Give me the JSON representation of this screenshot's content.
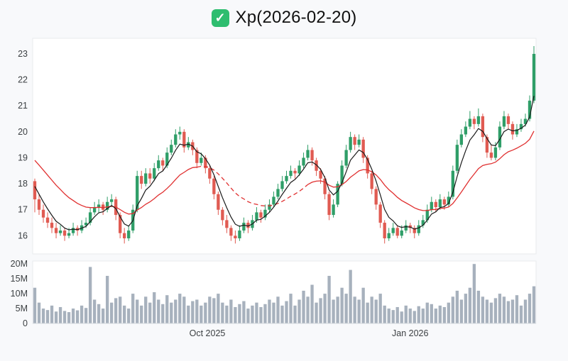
{
  "title": {
    "text": "Xp(2026-02-20)",
    "icon": "check-icon"
  },
  "colors": {
    "page_bg": "#f8f9fb",
    "panel_bg": "#ffffff",
    "panel_border": "#e9ebee",
    "up": "#2f9e68",
    "down": "#e05b52",
    "ma_fast": "#1a1a1a",
    "ma_slow": "#e03030",
    "volume_bar": "#a7b1bd",
    "axis_text": "#3c4043",
    "check_bg": "#2ebd6f"
  },
  "price_axis": {
    "ticks": [
      16,
      17,
      18,
      19,
      20,
      21,
      22,
      23
    ],
    "min": 15.3,
    "max": 23.6
  },
  "volume_axis": {
    "tick_values_m": [
      0,
      5,
      10,
      15,
      20
    ],
    "tick_labels": [
      "0",
      "5M",
      "10M",
      "15M",
      "20M"
    ],
    "max_m": 21
  },
  "x_axis": {
    "labels": [
      {
        "text": "Oct 2025",
        "pos": 0.347
      },
      {
        "text": "Jan 2026",
        "pos": 0.75
      }
    ]
  },
  "chart_data": {
    "type": "candlestick+volume",
    "title": "Xp(2026-02-20)",
    "ma_fast_window": 5,
    "ma_slow_window": 20,
    "ma_fast_seed": 17.9,
    "ma_slow_seed": 18.9,
    "red_dashed_range": [
      38,
      64
    ],
    "candles": [
      [
        18.1,
        18.2,
        16.9,
        17.4
      ],
      [
        17.4,
        17.6,
        16.8,
        17.0
      ],
      [
        17.0,
        17.2,
        16.5,
        16.7
      ],
      [
        16.7,
        16.9,
        16.3,
        16.5
      ],
      [
        16.5,
        16.7,
        16.1,
        16.3
      ],
      [
        16.3,
        16.5,
        15.9,
        16.1
      ],
      [
        16.1,
        16.4,
        16.0,
        16.2
      ],
      [
        16.2,
        16.3,
        15.8,
        16.0
      ],
      [
        16.0,
        16.3,
        15.9,
        16.1
      ],
      [
        16.1,
        16.5,
        16.0,
        16.3
      ],
      [
        16.3,
        16.4,
        16.0,
        16.2
      ],
      [
        16.2,
        16.6,
        16.1,
        16.4
      ],
      [
        16.4,
        16.7,
        16.3,
        16.5
      ],
      [
        16.5,
        17.1,
        16.4,
        16.9
      ],
      [
        16.9,
        17.3,
        16.8,
        17.1
      ],
      [
        17.1,
        17.4,
        16.9,
        17.2
      ],
      [
        17.2,
        17.3,
        16.8,
        17.0
      ],
      [
        17.0,
        17.5,
        16.9,
        17.3
      ],
      [
        17.3,
        17.6,
        17.1,
        17.4
      ],
      [
        17.4,
        17.5,
        16.6,
        16.8
      ],
      [
        16.8,
        16.9,
        15.9,
        16.1
      ],
      [
        16.1,
        16.3,
        15.7,
        15.9
      ],
      [
        15.9,
        16.4,
        15.8,
        16.2
      ],
      [
        16.2,
        17.2,
        16.1,
        17.0
      ],
      [
        17.0,
        18.5,
        16.9,
        18.3
      ],
      [
        18.3,
        18.5,
        17.8,
        18.0
      ],
      [
        18.0,
        18.6,
        17.9,
        18.4
      ],
      [
        18.4,
        18.6,
        18.0,
        18.2
      ],
      [
        18.2,
        18.8,
        18.1,
        18.6
      ],
      [
        18.6,
        19.1,
        18.5,
        18.9
      ],
      [
        18.9,
        19.0,
        18.5,
        18.7
      ],
      [
        18.7,
        19.4,
        18.6,
        19.2
      ],
      [
        19.2,
        19.7,
        19.1,
        19.5
      ],
      [
        19.5,
        20.1,
        19.4,
        19.9
      ],
      [
        19.9,
        20.2,
        19.7,
        20.0
      ],
      [
        20.0,
        20.1,
        19.2,
        19.4
      ],
      [
        19.4,
        19.8,
        19.3,
        19.6
      ],
      [
        19.6,
        19.7,
        19.1,
        19.3
      ],
      [
        19.3,
        19.4,
        18.6,
        18.8
      ],
      [
        18.8,
        19.2,
        18.7,
        19.0
      ],
      [
        19.0,
        19.1,
        18.4,
        18.6
      ],
      [
        18.6,
        18.7,
        18.0,
        18.2
      ],
      [
        18.2,
        18.3,
        17.4,
        17.6
      ],
      [
        17.6,
        17.7,
        16.8,
        17.0
      ],
      [
        17.0,
        17.1,
        16.4,
        16.6
      ],
      [
        16.6,
        16.8,
        16.1,
        16.3
      ],
      [
        16.3,
        16.4,
        15.8,
        16.0
      ],
      [
        16.0,
        16.2,
        15.7,
        15.9
      ],
      [
        15.9,
        16.4,
        15.8,
        16.2
      ],
      [
        16.2,
        16.7,
        16.1,
        16.5
      ],
      [
        16.5,
        16.6,
        16.1,
        16.3
      ],
      [
        16.3,
        16.8,
        16.2,
        16.6
      ],
      [
        16.6,
        17.1,
        16.5,
        16.9
      ],
      [
        16.9,
        17.0,
        16.5,
        16.7
      ],
      [
        16.7,
        17.2,
        16.6,
        17.0
      ],
      [
        17.0,
        17.4,
        16.9,
        17.2
      ],
      [
        17.2,
        17.7,
        17.1,
        17.5
      ],
      [
        17.5,
        18.0,
        17.4,
        17.8
      ],
      [
        17.8,
        18.3,
        17.7,
        18.1
      ],
      [
        18.1,
        18.5,
        18.0,
        18.3
      ],
      [
        18.3,
        18.7,
        18.2,
        18.5
      ],
      [
        18.5,
        18.6,
        18.2,
        18.4
      ],
      [
        18.4,
        18.9,
        18.3,
        18.7
      ],
      [
        18.7,
        19.2,
        18.6,
        19.0
      ],
      [
        19.0,
        19.5,
        18.9,
        19.3
      ],
      [
        19.3,
        19.4,
        18.7,
        18.9
      ],
      [
        18.9,
        19.0,
        18.3,
        18.5
      ],
      [
        18.5,
        18.6,
        18.0,
        18.2
      ],
      [
        18.2,
        18.3,
        17.4,
        17.6
      ],
      [
        17.6,
        17.7,
        16.6,
        16.8
      ],
      [
        16.8,
        17.4,
        16.7,
        17.2
      ],
      [
        17.2,
        18.1,
        17.1,
        18.0
      ],
      [
        18.0,
        18.9,
        17.9,
        18.7
      ],
      [
        18.7,
        19.5,
        18.6,
        19.3
      ],
      [
        19.3,
        20.0,
        19.2,
        19.8
      ],
      [
        19.8,
        19.9,
        19.3,
        19.5
      ],
      [
        19.5,
        19.9,
        19.4,
        19.7
      ],
      [
        19.7,
        19.8,
        18.8,
        19.0
      ],
      [
        19.0,
        19.1,
        18.2,
        18.4
      ],
      [
        18.4,
        18.5,
        17.6,
        17.8
      ],
      [
        17.8,
        17.9,
        17.0,
        17.2
      ],
      [
        17.2,
        17.3,
        16.3,
        16.5
      ],
      [
        16.5,
        16.6,
        15.7,
        15.9
      ],
      [
        15.9,
        16.3,
        15.8,
        16.1
      ],
      [
        16.1,
        16.5,
        16.0,
        16.3
      ],
      [
        16.3,
        16.4,
        15.9,
        16.0
      ],
      [
        16.0,
        16.4,
        15.9,
        16.2
      ],
      [
        16.2,
        16.6,
        16.1,
        16.4
      ],
      [
        16.4,
        16.5,
        16.1,
        16.3
      ],
      [
        16.3,
        16.4,
        15.9,
        16.1
      ],
      [
        16.1,
        16.6,
        16.0,
        16.4
      ],
      [
        16.4,
        16.8,
        16.3,
        16.6
      ],
      [
        16.6,
        17.2,
        16.5,
        17.0
      ],
      [
        17.0,
        17.5,
        16.9,
        17.3
      ],
      [
        17.3,
        17.4,
        16.9,
        17.1
      ],
      [
        17.1,
        17.6,
        17.0,
        17.4
      ],
      [
        17.4,
        17.5,
        17.0,
        17.2
      ],
      [
        17.2,
        17.7,
        17.1,
        17.5
      ],
      [
        17.5,
        18.7,
        17.4,
        18.5
      ],
      [
        18.5,
        19.7,
        18.4,
        19.5
      ],
      [
        19.5,
        20.1,
        19.4,
        19.9
      ],
      [
        19.9,
        20.4,
        19.8,
        20.2
      ],
      [
        20.2,
        20.8,
        20.1,
        20.5
      ],
      [
        20.5,
        20.6,
        20.1,
        20.3
      ],
      [
        20.3,
        20.9,
        20.2,
        20.6
      ],
      [
        20.6,
        20.7,
        19.6,
        19.8
      ],
      [
        19.8,
        19.9,
        19.0,
        19.2
      ],
      [
        19.2,
        19.5,
        18.9,
        19.0
      ],
      [
        19.0,
        19.6,
        18.9,
        19.4
      ],
      [
        19.4,
        20.4,
        19.3,
        20.2
      ],
      [
        20.2,
        20.8,
        20.1,
        20.6
      ],
      [
        20.6,
        20.7,
        20.1,
        20.3
      ],
      [
        20.3,
        20.4,
        19.7,
        19.9
      ],
      [
        19.9,
        20.3,
        19.8,
        20.1
      ],
      [
        20.1,
        20.5,
        20.0,
        20.3
      ],
      [
        20.3,
        20.7,
        20.2,
        20.5
      ],
      [
        20.5,
        21.4,
        20.4,
        21.2
      ],
      [
        21.2,
        23.3,
        21.1,
        23.0
      ]
    ],
    "volumes_m": [
      12,
      7,
      5,
      4.5,
      6,
      4,
      5.5,
      4.2,
      3.8,
      5,
      4.4,
      6,
      5.2,
      19,
      8,
      6.5,
      5,
      16,
      7,
      8.5,
      9,
      6,
      5,
      10,
      8,
      6,
      9,
      7,
      10.5,
      8,
      6.5,
      9.5,
      7,
      8,
      10,
      9,
      6,
      7.5,
      8,
      6,
      7,
      9,
      8.5,
      10,
      7,
      6,
      8,
      5.5,
      6.5,
      7.5,
      5,
      6,
      7,
      5.5,
      6.5,
      8,
      7,
      9,
      6,
      7.5,
      10,
      6,
      8,
      11,
      9,
      13,
      7,
      8.5,
      10,
      16,
      8,
      9,
      12,
      10,
      18,
      9,
      8,
      12,
      7,
      9,
      8,
      10,
      6,
      5,
      4.5,
      5.5,
      4,
      6,
      5,
      4.2,
      5.8,
      5,
      7,
      6.5,
      5,
      6,
      5.5,
      7,
      9,
      11,
      8,
      10,
      12,
      20,
      11,
      9,
      8,
      7,
      8.5,
      10,
      9,
      7.5,
      8,
      9.5,
      6,
      8,
      10,
      12.5
    ]
  }
}
